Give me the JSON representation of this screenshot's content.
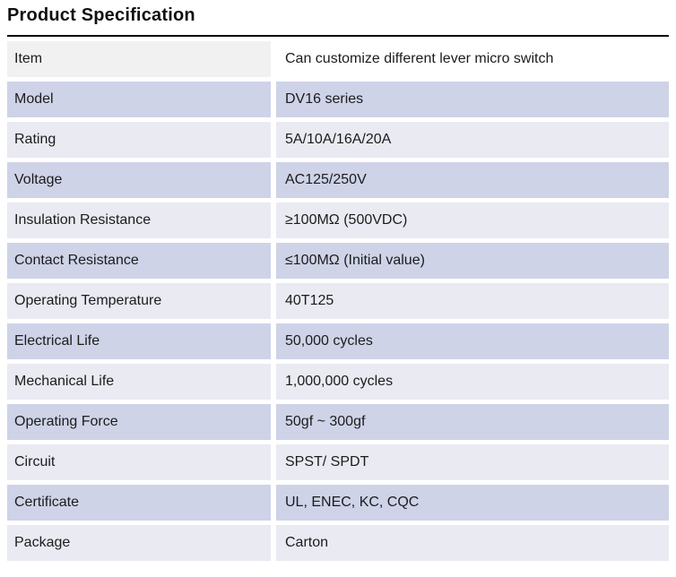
{
  "page": {
    "title": "Product Specification"
  },
  "colors": {
    "title_rule": "#000000",
    "text": "#1c1c1c",
    "header_label_bg": "#f1f1f1",
    "header_value_bg": "#ffffff",
    "row_even_bg": "#ced3e8",
    "row_odd_bg": "#e9eaf2"
  },
  "table": {
    "rows": [
      {
        "label": "Item",
        "value": "Can customize different lever micro switch"
      },
      {
        "label": "Model",
        "value": "DV16 series"
      },
      {
        "label": "Rating",
        "value": "5A/10A/16A/20A"
      },
      {
        "label": "Voltage",
        "value": "AC125/250V"
      },
      {
        "label": "Insulation Resistance",
        "value": "≥100MΩ (500VDC)"
      },
      {
        "label": "Contact Resistance",
        "value": "≤100MΩ (Initial value)"
      },
      {
        "label": "Operating Temperature",
        "value": "40T125"
      },
      {
        "label": "Electrical Life",
        "value": "50,000 cycles"
      },
      {
        "label": "Mechanical Life",
        "value": "1,000,000 cycles"
      },
      {
        "label": "Operating Force",
        "value": "50gf ~ 300gf"
      },
      {
        "label": "Circuit",
        "value": "SPST/ SPDT"
      },
      {
        "label": "Certificate",
        "value": "UL, ENEC, KC, CQC"
      },
      {
        "label": "Package",
        "value": "Carton"
      }
    ]
  }
}
